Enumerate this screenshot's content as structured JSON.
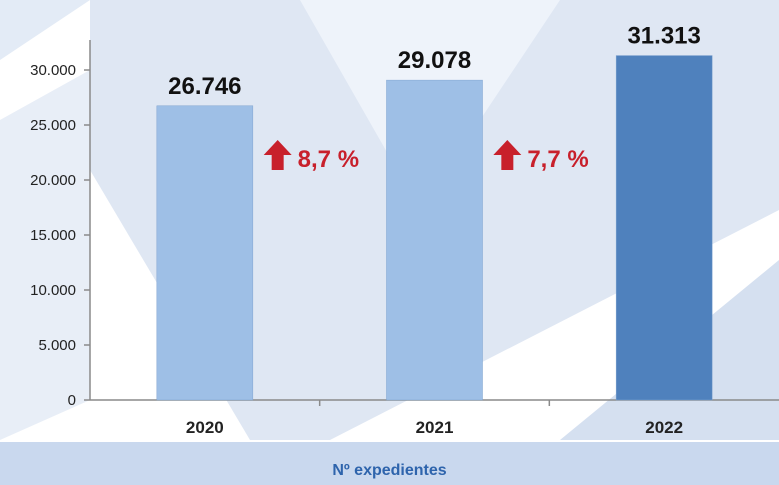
{
  "chart_data": {
    "type": "bar",
    "categories": [
      "2020",
      "2021",
      "2022"
    ],
    "values": [
      26746,
      29078,
      31313
    ],
    "value_labels": [
      "26.746",
      "29.078",
      "31.313"
    ],
    "bar_colors": [
      "#9ebfe6",
      "#9ebfe6",
      "#4f81bd"
    ],
    "yticks": [
      0,
      5000,
      10000,
      15000,
      20000,
      25000,
      30000
    ],
    "ytick_labels": [
      "0",
      "5.000",
      "10.000",
      "15.000",
      "20.000",
      "25.000",
      "30.000"
    ],
    "ylim": [
      0,
      32500
    ],
    "growth": [
      {
        "label": "8,7 %",
        "direction": "up"
      },
      {
        "label": "7,7 %",
        "direction": "up"
      }
    ],
    "legend": "Nº expedientes",
    "growth_color": "#c8202b",
    "grid": false
  }
}
